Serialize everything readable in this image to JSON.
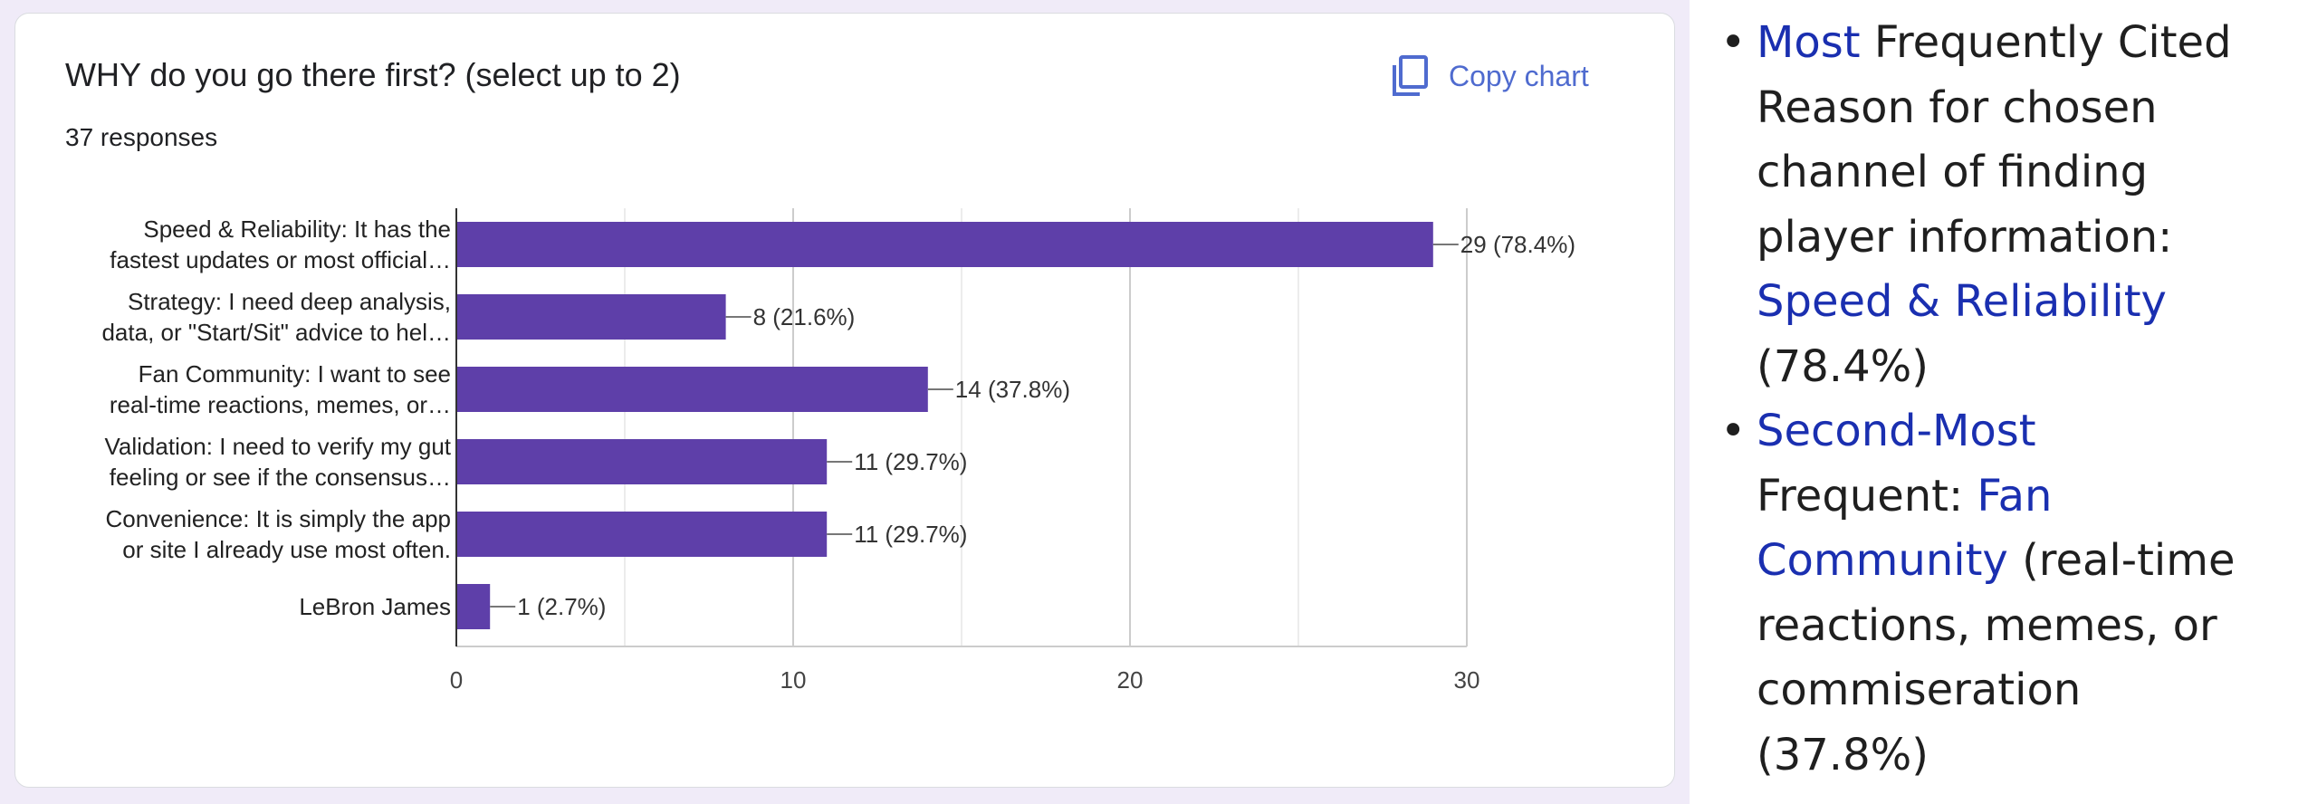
{
  "card": {
    "title": "WHY do you go there first? (select up to 2)",
    "responses": "37 responses",
    "copy_chart_label": "Copy chart",
    "copy_icon": "copy-icon"
  },
  "colors": {
    "bar": "#5e3fa9",
    "accent": "#4f6bcf",
    "highlight": "#1a2fb0",
    "page_bg": "#f0ebf8"
  },
  "chart_data": {
    "type": "bar",
    "orientation": "horizontal",
    "categories": [
      [
        "Speed & Reliability: It has the",
        "fastest updates or most official…"
      ],
      [
        "Strategy: I need deep analysis,",
        "data, or \"Start/Sit\" advice to hel…"
      ],
      [
        "Fan Community: I want to see",
        "real-time reactions, memes, or…"
      ],
      [
        "Validation: I need to verify my gut",
        "feeling or see if the consensus…"
      ],
      [
        "Convenience: It is simply the app",
        "or site I already use most often."
      ],
      [
        "LeBron James"
      ]
    ],
    "values": [
      29,
      8,
      14,
      11,
      11,
      1
    ],
    "value_labels": [
      "29 (78.4%)",
      "8 (21.6%)",
      "14 (37.8%)",
      "11 (29.7%)",
      "11 (29.7%)",
      "1 (2.7%)"
    ],
    "xlim": [
      0,
      30
    ],
    "xticks": [
      0,
      10,
      20,
      30
    ],
    "grid": true
  },
  "notes": [
    {
      "line1_hl": "Most",
      "line1_rest": " Frequently Cited",
      "line2": "Reason for chosen",
      "line3": "channel of finding",
      "line4": "player information:",
      "line5_hl": "Speed & Reliability",
      "line6": "(78.4%)"
    },
    {
      "line1_hl": "Second-Most",
      "line2_plain": "Frequent: ",
      "line2_hl": "Fan",
      "line3_hl": "Community",
      "line3_rest": " (real-time",
      "line4": "reactions, memes, or",
      "line5": "commiseration",
      "line6": "(37.8%)"
    }
  ]
}
